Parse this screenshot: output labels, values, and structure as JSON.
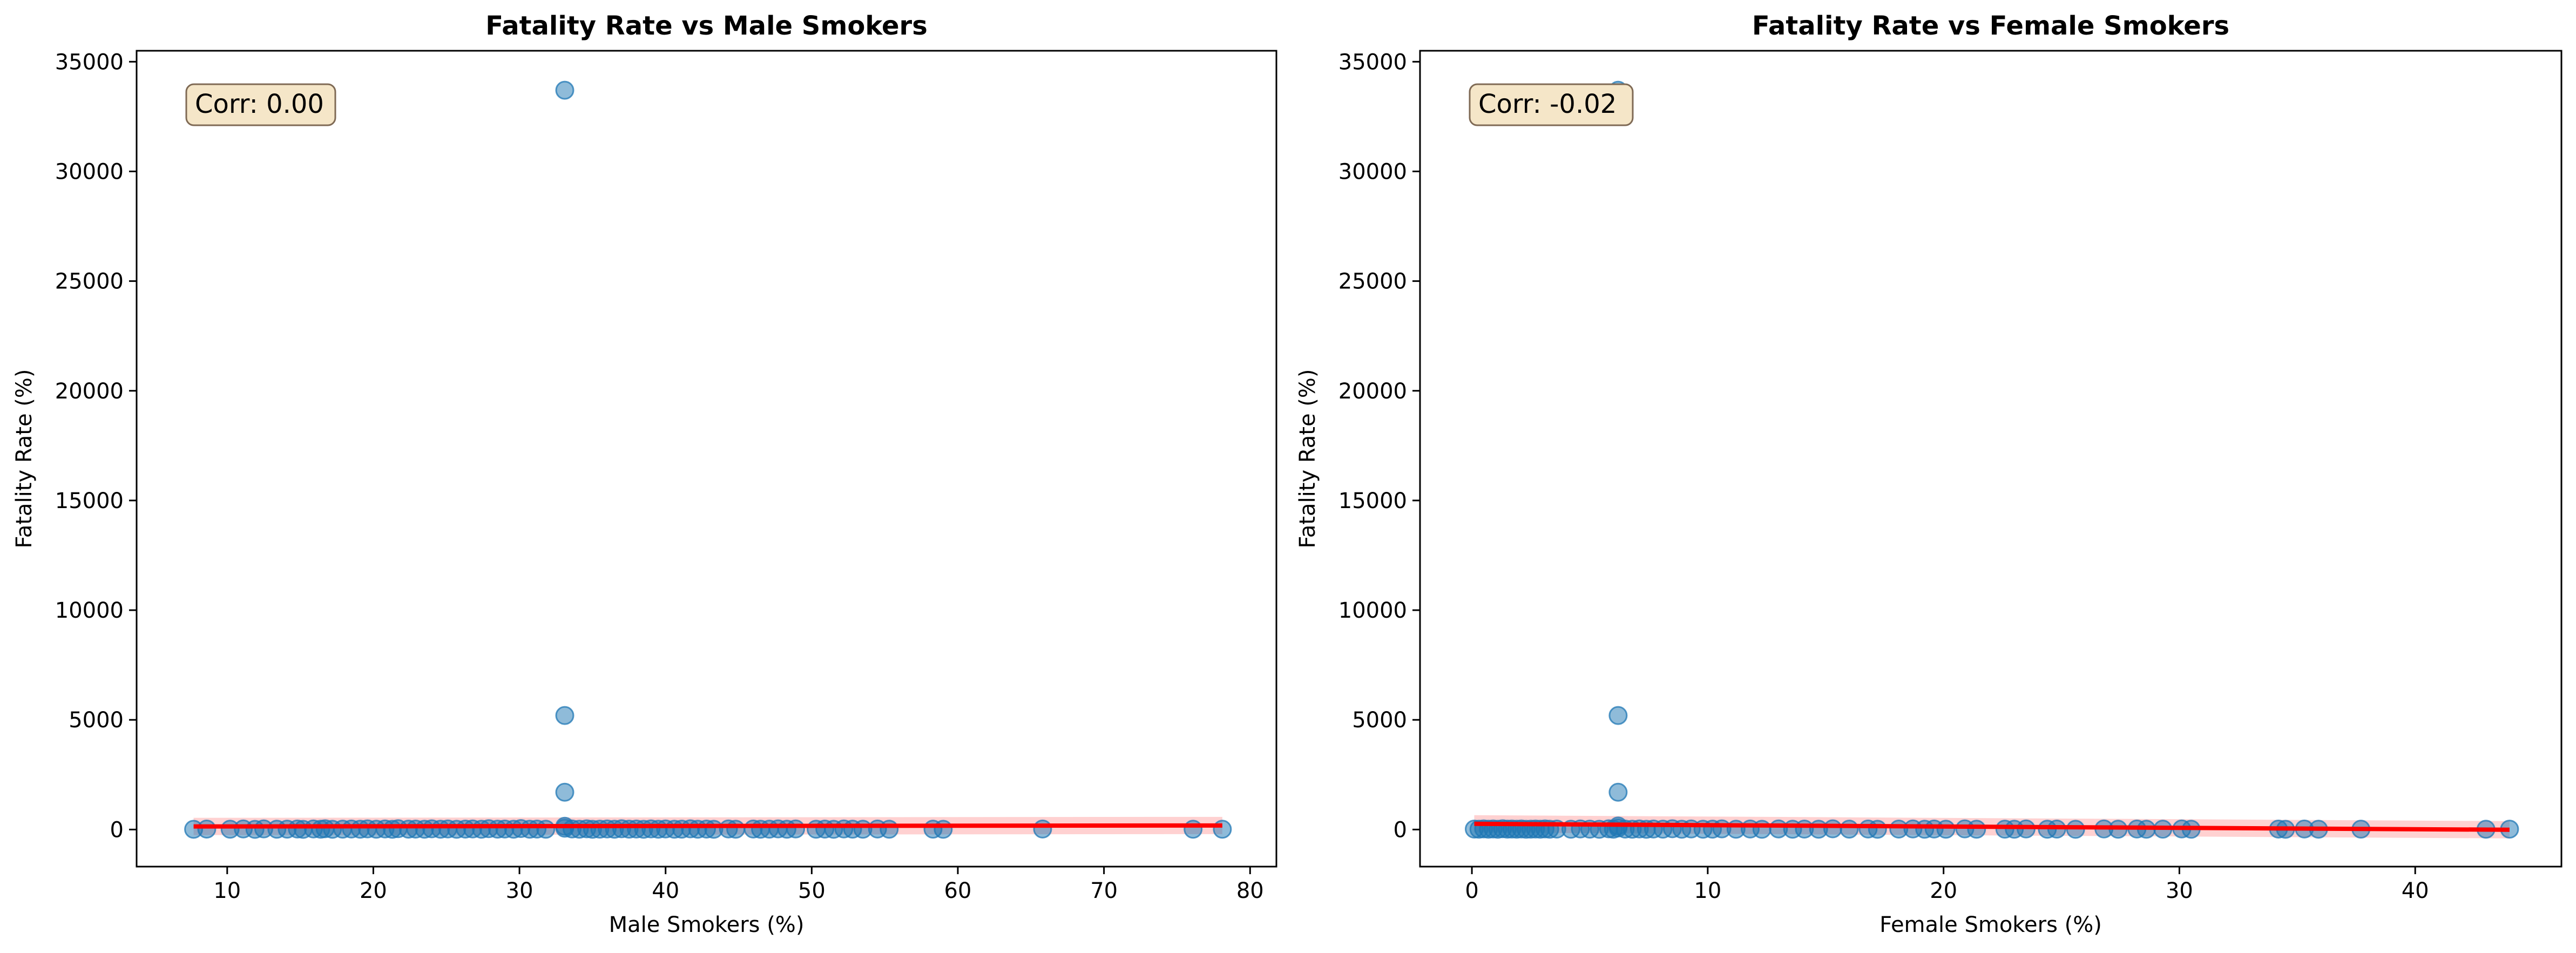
{
  "chart_data": [
    {
      "type": "scatter",
      "title": "Fatality Rate vs Male Smokers",
      "xlabel": "Male Smokers (%)",
      "ylabel": "Fatality Rate (%)",
      "xlim": [
        3.8,
        81.8
      ],
      "ylim": [
        -1690,
        35500
      ],
      "xticks": [
        10,
        20,
        30,
        40,
        50,
        60,
        70,
        80
      ],
      "yticks": [
        0,
        5000,
        10000,
        15000,
        20000,
        25000,
        30000,
        35000
      ],
      "annotation": "Corr: 0.00",
      "grid": false,
      "colors": {
        "points": "#1f77b4",
        "trend": "#ff0000",
        "band": "#ff0000",
        "annotation_bg": "#f5e6c8",
        "annotation_edge": "#7f6a55"
      },
      "series": [
        {
          "points": [
            [
              7.7,
              10
            ],
            [
              8.6,
              20
            ],
            [
              10.2,
              15
            ],
            [
              11.1,
              25
            ],
            [
              11.9,
              8
            ],
            [
              12.5,
              30
            ],
            [
              13.4,
              12
            ],
            [
              14.1,
              18
            ],
            [
              14.8,
              22
            ],
            [
              15.2,
              9
            ],
            [
              15.9,
              28
            ],
            [
              16.4,
              14
            ],
            [
              16.7,
              35
            ],
            [
              17.2,
              11
            ],
            [
              17.9,
              19
            ],
            [
              18.5,
              24
            ],
            [
              19.1,
              16
            ],
            [
              19.6,
              31
            ],
            [
              20.2,
              13
            ],
            [
              20.8,
              27
            ],
            [
              21.3,
              10
            ],
            [
              21.7,
              40
            ],
            [
              22.4,
              17
            ],
            [
              22.9,
              21
            ],
            [
              23.5,
              12
            ],
            [
              24.0,
              33
            ],
            [
              24.6,
              15
            ],
            [
              25.1,
              26
            ],
            [
              25.7,
              11
            ],
            [
              26.3,
              20
            ],
            [
              26.8,
              29
            ],
            [
              27.4,
              14
            ],
            [
              27.9,
              38
            ],
            [
              28.5,
              18
            ],
            [
              29.0,
              23
            ],
            [
              29.6,
              12
            ],
            [
              30.1,
              45
            ],
            [
              30.7,
              16
            ],
            [
              31.2,
              21
            ],
            [
              31.8,
              13
            ],
            [
              33.1,
              33700
            ],
            [
              33.1,
              5200
            ],
            [
              33.1,
              1700
            ],
            [
              33.1,
              150
            ],
            [
              33.1,
              60
            ],
            [
              33.6,
              25
            ],
            [
              34.1,
              14
            ],
            [
              34.6,
              32
            ],
            [
              35.0,
              11
            ],
            [
              35.5,
              19
            ],
            [
              36.0,
              27
            ],
            [
              36.5,
              13
            ],
            [
              37.0,
              36
            ],
            [
              37.5,
              17
            ],
            [
              38.0,
              22
            ],
            [
              38.5,
              10
            ],
            [
              39.0,
              30
            ],
            [
              39.5,
              15
            ],
            [
              40.0,
              25
            ],
            [
              40.6,
              12
            ],
            [
              41.1,
              18
            ],
            [
              41.7,
              34
            ],
            [
              42.2,
              14
            ],
            [
              42.8,
              21
            ],
            [
              43.3,
              11
            ],
            [
              44.3,
              28
            ],
            [
              44.8,
              16
            ],
            [
              46.0,
              24
            ],
            [
              46.5,
              13
            ],
            [
              47.1,
              19
            ],
            [
              47.7,
              31
            ],
            [
              48.3,
              12
            ],
            [
              48.9,
              26
            ],
            [
              50.3,
              15
            ],
            [
              50.9,
              20
            ],
            [
              51.5,
              11
            ],
            [
              52.2,
              29
            ],
            [
              52.8,
              17
            ],
            [
              53.5,
              14
            ],
            [
              54.5,
              23
            ],
            [
              55.3,
              12
            ],
            [
              58.3,
              18
            ],
            [
              59.0,
              10
            ],
            [
              65.8,
              22
            ],
            [
              76.1,
              15
            ],
            [
              78.1,
              12
            ]
          ]
        }
      ],
      "trend": {
        "x": [
          7.7,
          78.1
        ],
        "y": [
          140,
          185
        ]
      }
    },
    {
      "type": "scatter",
      "title": "Fatality Rate vs Female Smokers",
      "xlabel": "Female Smokers (%)",
      "ylabel": "Fatality Rate (%)",
      "xlim": [
        -2.2,
        46.2
      ],
      "ylim": [
        -1690,
        35500
      ],
      "xticks": [
        0,
        10,
        20,
        30,
        40
      ],
      "yticks": [
        0,
        5000,
        10000,
        15000,
        20000,
        25000,
        30000,
        35000
      ],
      "annotation": "Corr: -0.02",
      "grid": false,
      "colors": {
        "points": "#1f77b4",
        "trend": "#ff0000",
        "band": "#ff0000",
        "annotation_bg": "#f5e6c8",
        "annotation_edge": "#7f6a55"
      },
      "series": [
        {
          "points": [
            [
              0.1,
              20
            ],
            [
              0.3,
              12
            ],
            [
              0.5,
              30
            ],
            [
              0.7,
              15
            ],
            [
              0.9,
              25
            ],
            [
              1.1,
              10
            ],
            [
              1.3,
              35
            ],
            [
              1.5,
              18
            ],
            [
              1.7,
              22
            ],
            [
              1.9,
              13
            ],
            [
              2.1,
              28
            ],
            [
              2.3,
              11
            ],
            [
              2.5,
              19
            ],
            [
              2.7,
              24
            ],
            [
              2.9,
              16
            ],
            [
              3.1,
              31
            ],
            [
              3.3,
              14
            ],
            [
              3.6,
              21
            ],
            [
              4.2,
              12
            ],
            [
              4.6,
              26
            ],
            [
              5.0,
              17
            ],
            [
              5.4,
              10
            ],
            [
              5.8,
              33
            ],
            [
              6.0,
              15
            ],
            [
              6.2,
              33700
            ],
            [
              6.2,
              5200
            ],
            [
              6.2,
              1700
            ],
            [
              6.2,
              160
            ],
            [
              6.2,
              70
            ],
            [
              6.5,
              20
            ],
            [
              6.8,
              13
            ],
            [
              7.1,
              29
            ],
            [
              7.4,
              11
            ],
            [
              7.7,
              22
            ],
            [
              8.1,
              18
            ],
            [
              8.5,
              36
            ],
            [
              8.9,
              14
            ],
            [
              9.3,
              25
            ],
            [
              9.8,
              12
            ],
            [
              10.2,
              19
            ],
            [
              10.6,
              30
            ],
            [
              11.2,
              16
            ],
            [
              11.8,
              23
            ],
            [
              12.3,
              10
            ],
            [
              13.0,
              27
            ],
            [
              13.6,
              15
            ],
            [
              14.1,
              21
            ],
            [
              14.7,
              12
            ],
            [
              15.3,
              34
            ],
            [
              16.0,
              17
            ],
            [
              16.8,
              24
            ],
            [
              17.2,
              11
            ],
            [
              18.1,
              20
            ],
            [
              18.7,
              28
            ],
            [
              19.2,
              14
            ],
            [
              19.6,
              22
            ],
            [
              20.1,
              13
            ],
            [
              20.9,
              31
            ],
            [
              21.4,
              16
            ],
            [
              22.6,
              19
            ],
            [
              23.0,
              12
            ],
            [
              23.5,
              26
            ],
            [
              24.4,
              15
            ],
            [
              24.8,
              21
            ],
            [
              25.6,
              10
            ],
            [
              26.8,
              29
            ],
            [
              27.4,
              14
            ],
            [
              28.2,
              23
            ],
            [
              28.6,
              12
            ],
            [
              29.3,
              18
            ],
            [
              30.1,
              27
            ],
            [
              30.5,
              13
            ],
            [
              34.2,
              20
            ],
            [
              34.5,
              11
            ],
            [
              35.3,
              24
            ],
            [
              35.9,
              15
            ],
            [
              37.7,
              19
            ],
            [
              43.0,
              12
            ],
            [
              44.0,
              17
            ]
          ]
        }
      ],
      "trend": {
        "x": [
          0.1,
          44.0
        ],
        "y": [
          260,
          -10
        ]
      }
    }
  ]
}
